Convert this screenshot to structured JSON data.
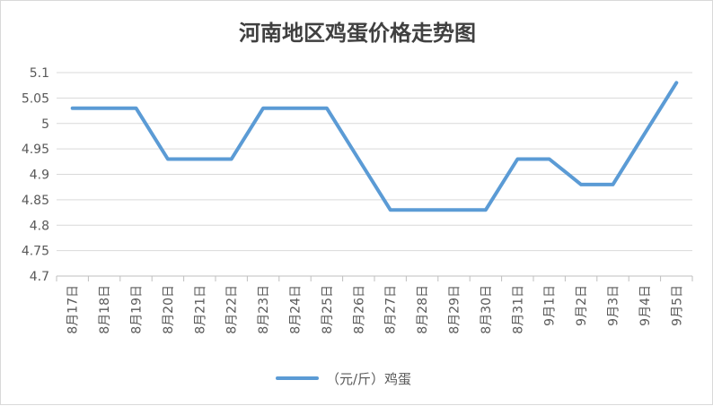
{
  "chart_data": {
    "type": "line",
    "title": "河南地区鸡蛋价格走势图",
    "categories": [
      "8月17日",
      "8月18日",
      "8月19日",
      "8月20日",
      "8月21日",
      "8月22日",
      "8月23日",
      "8月24日",
      "8月25日",
      "8月26日",
      "8月27日",
      "8月28日",
      "8月29日",
      "8月30日",
      "8月31日",
      "9月1日",
      "9月2日",
      "9月3日",
      "9月4日",
      "9月5日"
    ],
    "series": [
      {
        "name": "（元/斤）鸡蛋",
        "color": "#5b9bd5",
        "values": [
          5.03,
          5.03,
          5.03,
          4.93,
          4.93,
          4.93,
          5.03,
          5.03,
          5.03,
          4.93,
          4.83,
          4.83,
          4.83,
          4.83,
          4.93,
          4.93,
          4.88,
          4.88,
          4.98,
          5.08
        ]
      }
    ],
    "y_ticks": [
      "4.7",
      "4.75",
      "4.8",
      "4.85",
      "4.9",
      "4.95",
      "5",
      "5.05",
      "5.1"
    ],
    "ylim": [
      4.7,
      5.1
    ],
    "grid": true,
    "legend_position": "bottom",
    "xlabel": "",
    "ylabel": ""
  }
}
